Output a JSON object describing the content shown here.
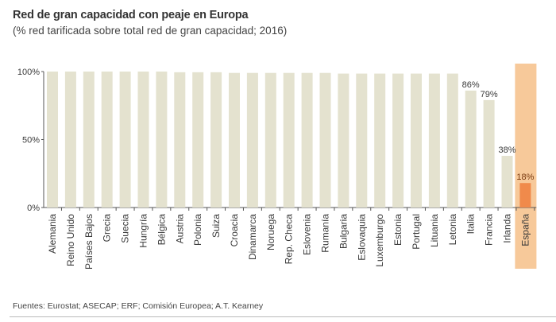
{
  "header": {
    "title": "Red de gran capacidad con peaje en Europa",
    "subtitle": "(% red tarificada sobre total red de gran capacidad; 2016)"
  },
  "footer": {
    "source": "Fuentes: Eurostat; ASECAP; ERF; Comisión Europea; A.T. Kearney"
  },
  "colors": {
    "bar": "#e4e2cf",
    "highlight_bar": "#f08a4b",
    "highlight_band": "#f7c99a",
    "axis": "#555555",
    "text": "#3a3a3a"
  },
  "chart_data": {
    "type": "bar",
    "title": "Red de gran capacidad con peaje en Europa",
    "subtitle": "(% red tarificada sobre total red de gran capacidad; 2016)",
    "xlabel": "",
    "ylabel": "",
    "ylim": [
      0,
      100
    ],
    "yticks": [
      0,
      50,
      100
    ],
    "ytick_labels": [
      "0%",
      "50%",
      "100%"
    ],
    "grid": false,
    "categories": [
      "Alemania",
      "Reino Unido",
      "Países Bajos",
      "Grecia",
      "Suecia",
      "Hungría",
      "Bélgica",
      "Austria",
      "Polonia",
      "Suiza",
      "Croacia",
      "Dinamarca",
      "Noruega",
      "Rep. Checa",
      "Eslovenia",
      "Rumanía",
      "Bulgaria",
      "Eslovaquia",
      "Luxemburgo",
      "Estonia",
      "Portugal",
      "Lituania",
      "Letonia",
      "Italia",
      "Francia",
      "Irlanda",
      "España"
    ],
    "values": [
      100,
      100,
      100,
      100,
      100,
      100,
      100,
      99.5,
      99.5,
      99.5,
      99,
      99,
      99,
      99,
      99,
      99,
      98.5,
      98.5,
      98.5,
      98.5,
      98.5,
      98.5,
      98.5,
      86,
      79,
      38,
      18
    ],
    "data_labels": {
      "Italia": "86%",
      "Francia": "79%",
      "Irlanda": "38%",
      "España": "18%"
    },
    "highlight": "España"
  }
}
